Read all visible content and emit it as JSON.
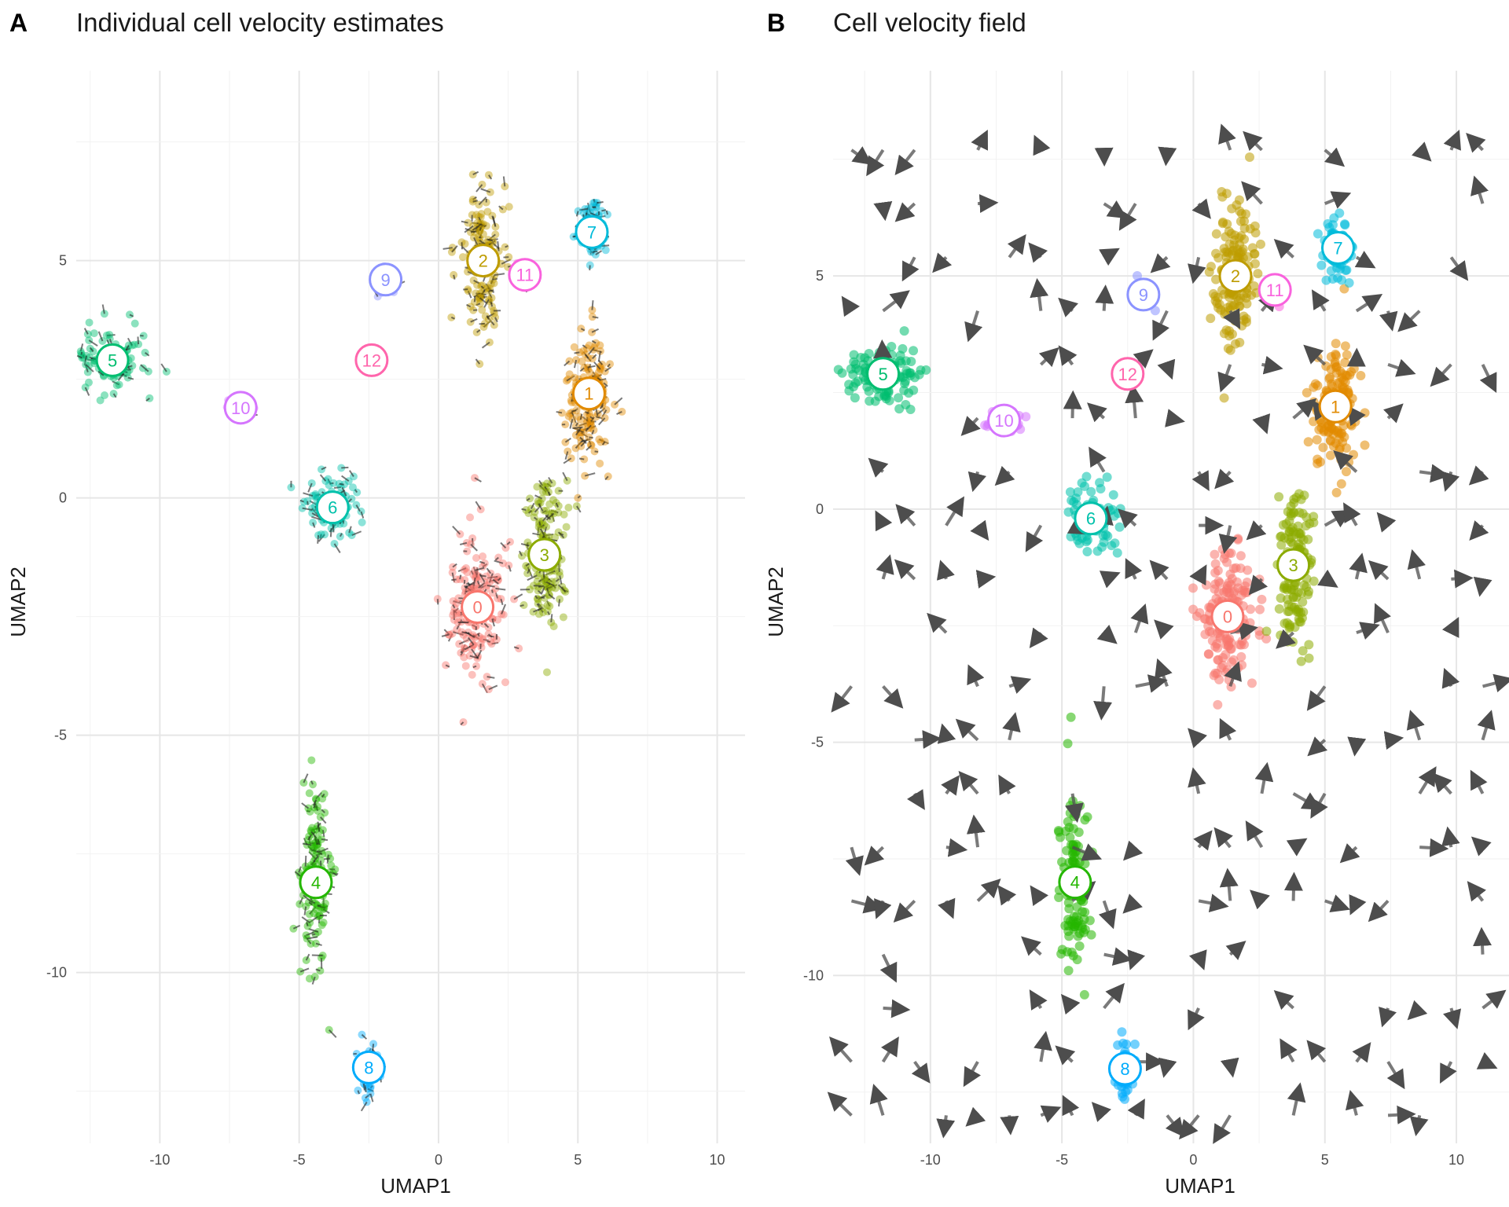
{
  "chart_data": [
    {
      "type": "scatter",
      "panel": "A",
      "title": "Individual cell velocity estimates",
      "xlabel": "UMAP1",
      "ylabel": "UMAP2",
      "xlim": [
        -13,
        11
      ],
      "ylim": [
        -13.6,
        9
      ],
      "x_ticks": [
        -10,
        -5,
        0,
        5,
        10
      ],
      "y_ticks": [
        -10,
        -5,
        0,
        5
      ],
      "grid": true,
      "clusters": [
        {
          "label": "0",
          "x": 1.4,
          "y": -2.3,
          "color": "#F8766D"
        },
        {
          "label": "1",
          "x": 5.4,
          "y": 2.2,
          "color": "#E18A00"
        },
        {
          "label": "2",
          "x": 1.6,
          "y": 5.0,
          "color": "#BE9C00"
        },
        {
          "label": "3",
          "x": 3.8,
          "y": -1.2,
          "color": "#8CAB00"
        },
        {
          "label": "4",
          "x": -4.4,
          "y": -8.1,
          "color": "#24B700"
        },
        {
          "label": "5",
          "x": -11.7,
          "y": 2.9,
          "color": "#00BE70"
        },
        {
          "label": "6",
          "x": -3.8,
          "y": -0.2,
          "color": "#00C1AB"
        },
        {
          "label": "7",
          "x": 5.5,
          "y": 5.6,
          "color": "#00BBDA"
        },
        {
          "label": "8",
          "x": -2.5,
          "y": -12.0,
          "color": "#00ACFC"
        },
        {
          "label": "9",
          "x": -1.9,
          "y": 4.6,
          "color": "#8B93FF"
        },
        {
          "label": "10",
          "x": -7.1,
          "y": 1.9,
          "color": "#D575FE"
        },
        {
          "label": "11",
          "x": 3.1,
          "y": 4.7,
          "color": "#F962DD"
        },
        {
          "label": "12",
          "x": -2.4,
          "y": 2.9,
          "color": "#FF65AC"
        }
      ]
    },
    {
      "type": "scatter",
      "panel": "B",
      "title": "Cell velocity field",
      "xlabel": "UMAP1",
      "ylabel": "UMAP2",
      "xlim": [
        -13.7,
        12
      ],
      "ylim": [
        -13.6,
        9.4
      ],
      "x_ticks": [
        -10,
        -5,
        0,
        5,
        10
      ],
      "y_ticks": [
        -10,
        -5,
        0,
        5
      ],
      "grid": true,
      "clusters": [
        {
          "label": "0",
          "x": 1.3,
          "y": -2.3,
          "color": "#F8766D"
        },
        {
          "label": "1",
          "x": 5.4,
          "y": 2.2,
          "color": "#E18A00"
        },
        {
          "label": "2",
          "x": 1.6,
          "y": 5.0,
          "color": "#BE9C00"
        },
        {
          "label": "3",
          "x": 3.8,
          "y": -1.2,
          "color": "#8CAB00"
        },
        {
          "label": "4",
          "x": -4.5,
          "y": -8.0,
          "color": "#24B700"
        },
        {
          "label": "5",
          "x": -11.8,
          "y": 2.9,
          "color": "#00BE70"
        },
        {
          "label": "6",
          "x": -3.9,
          "y": -0.2,
          "color": "#00C1AB"
        },
        {
          "label": "7",
          "x": 5.5,
          "y": 5.6,
          "color": "#00BBDA"
        },
        {
          "label": "8",
          "x": -2.6,
          "y": -12.0,
          "color": "#00ACFC"
        },
        {
          "label": "9",
          "x": -1.9,
          "y": 4.6,
          "color": "#8B93FF"
        },
        {
          "label": "10",
          "x": -7.2,
          "y": 1.9,
          "color": "#D575FE"
        },
        {
          "label": "11",
          "x": 3.1,
          "y": 4.7,
          "color": "#F962DD"
        },
        {
          "label": "12",
          "x": -2.5,
          "y": 2.9,
          "color": "#FF65AC"
        }
      ]
    }
  ]
}
